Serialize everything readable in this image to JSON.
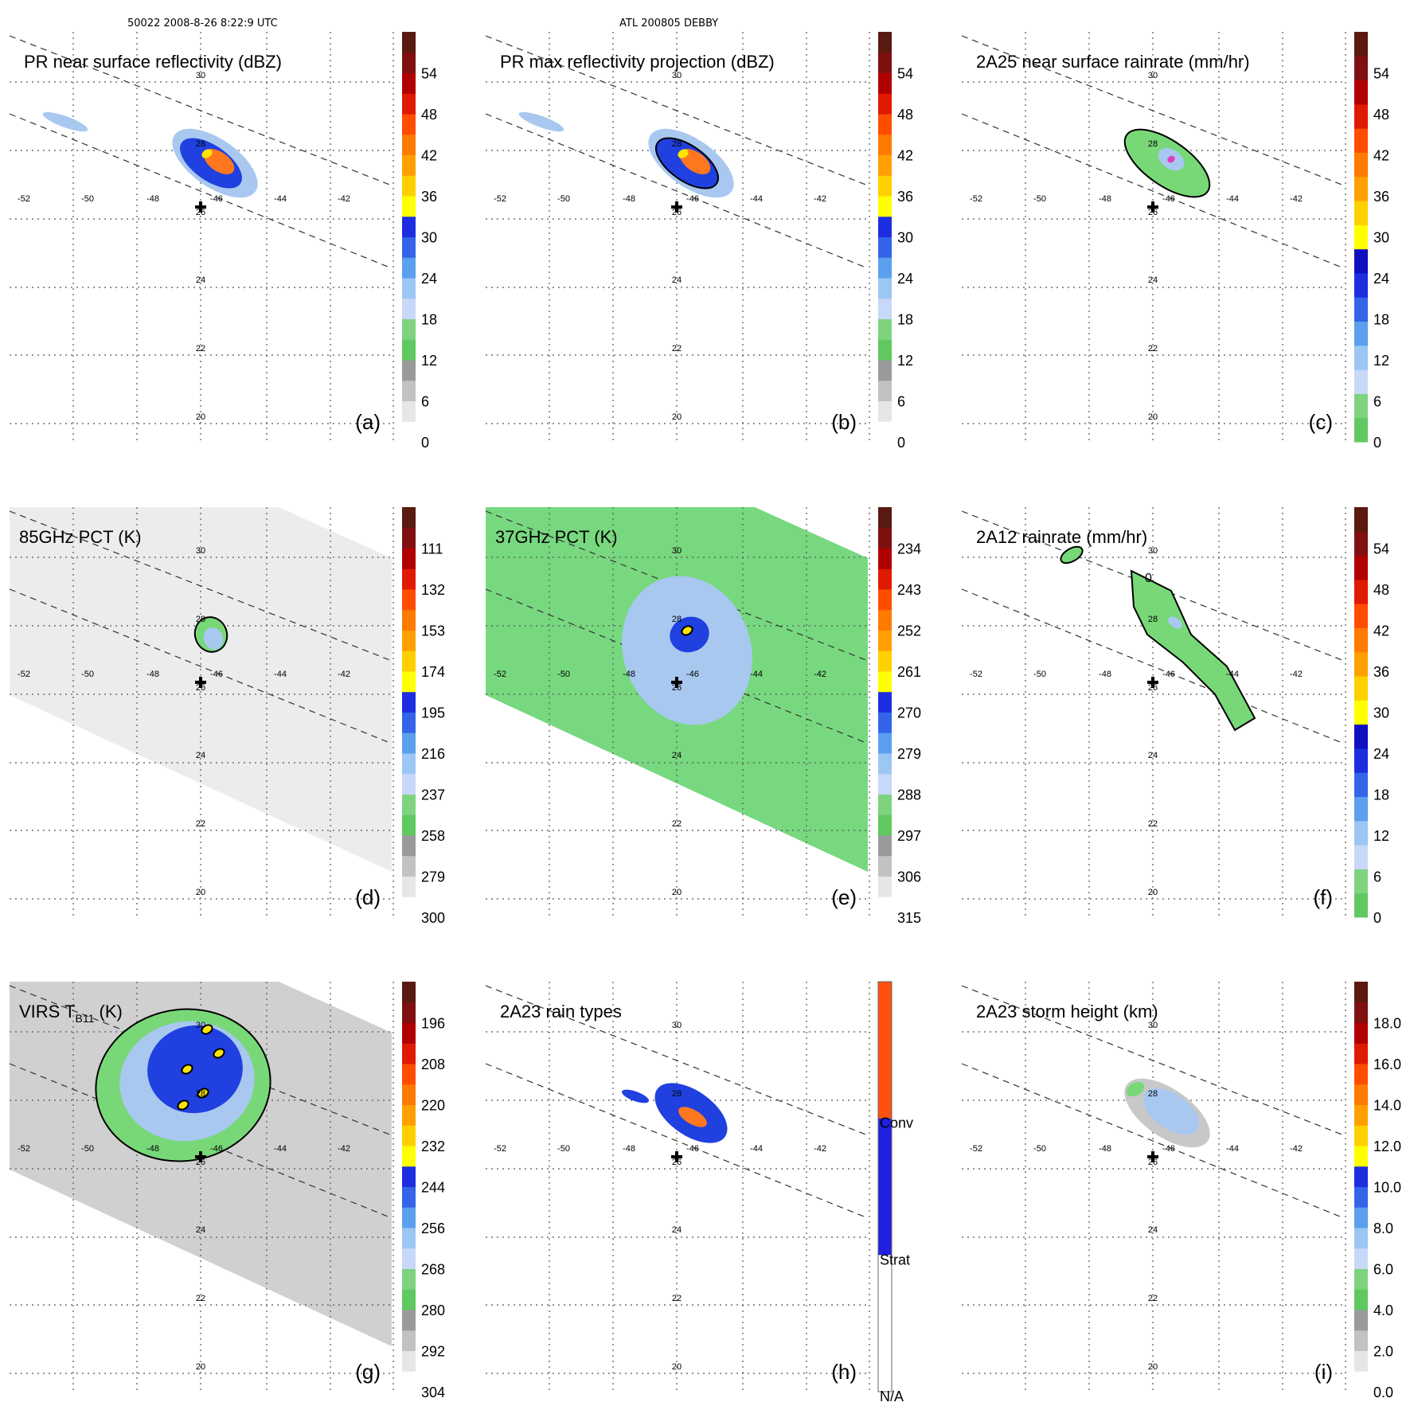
{
  "header": {
    "orbit_time": "50022 2008-8-26 8:22:9 UTC",
    "storm": "ATL 200805 DEBBY"
  },
  "map": {
    "lon_labels": [
      "-52",
      "-50",
      "-48",
      "-46",
      "-44",
      "-42"
    ],
    "lat_labels": [
      "30",
      "28",
      "26",
      "24",
      "22",
      "20"
    ],
    "storm_center_marker": "plus-marker-icon"
  },
  "colors": {
    "green": "#78d878",
    "light_blue": "#a8c8f0",
    "blue": "#2040e0",
    "yellow": "#ffe600",
    "orange": "#ff7820",
    "red": "#e02010",
    "gray": "#c8c8c8"
  },
  "panels": [
    {
      "id": "a",
      "title": "PR near surface reflectivity (dBZ)",
      "tag": "(a)",
      "colorbar": [
        "0",
        "6",
        "12",
        "18",
        "24",
        "30",
        "36",
        "42",
        "48",
        "54"
      ],
      "bar_type": "std"
    },
    {
      "id": "b",
      "title": "PR max reflectivity projection (dBZ)",
      "tag": "(b)",
      "colorbar": [
        "0",
        "6",
        "12",
        "18",
        "24",
        "30",
        "36",
        "42",
        "48",
        "54"
      ],
      "bar_type": "std"
    },
    {
      "id": "c",
      "title": "2A25 near surface rainrate (mm/hr)",
      "tag": "(c)",
      "colorbar": [
        "0",
        "6",
        "12",
        "18",
        "24",
        "30",
        "36",
        "42",
        "48",
        "54"
      ],
      "bar_type": "rain"
    },
    {
      "id": "d",
      "title": "85GHz PCT (K)",
      "tag": "(d)",
      "colorbar": [
        "300",
        "279",
        "258",
        "237",
        "216",
        "195",
        "174",
        "153",
        "132",
        "111"
      ],
      "bar_type": "std"
    },
    {
      "id": "e",
      "title": "37GHz PCT (K)",
      "tag": "(e)",
      "colorbar": [
        "315",
        "306",
        "297",
        "288",
        "279",
        "270",
        "261",
        "252",
        "243",
        "234"
      ],
      "bar_type": "std"
    },
    {
      "id": "f",
      "title": "2A12 rainrate (mm/hr)",
      "tag": "(f)",
      "colorbar": [
        "0",
        "6",
        "12",
        "18",
        "24",
        "30",
        "36",
        "42",
        "48",
        "54"
      ],
      "bar_type": "rain",
      "contour_label": "0"
    },
    {
      "id": "g",
      "title_main": "VIRS T",
      "title_sub": "B11",
      "title_unit": " (K)",
      "tag": "(g)",
      "colorbar": [
        "304",
        "292",
        "280",
        "268",
        "256",
        "244",
        "232",
        "220",
        "208",
        "196"
      ],
      "bar_type": "std"
    },
    {
      "id": "h",
      "title": "2A23 rain types",
      "tag": "(h)",
      "colorbar": [
        "N/A",
        "Strat",
        "Conv"
      ],
      "bar_type": "types"
    },
    {
      "id": "i",
      "title": "2A23 storm height (km)",
      "tag": "(i)",
      "colorbar": [
        "0.0",
        "2.0",
        "4.0",
        "6.0",
        "8.0",
        "10.0",
        "12.0",
        "14.0",
        "16.0",
        "18.0"
      ],
      "bar_type": "std"
    }
  ]
}
